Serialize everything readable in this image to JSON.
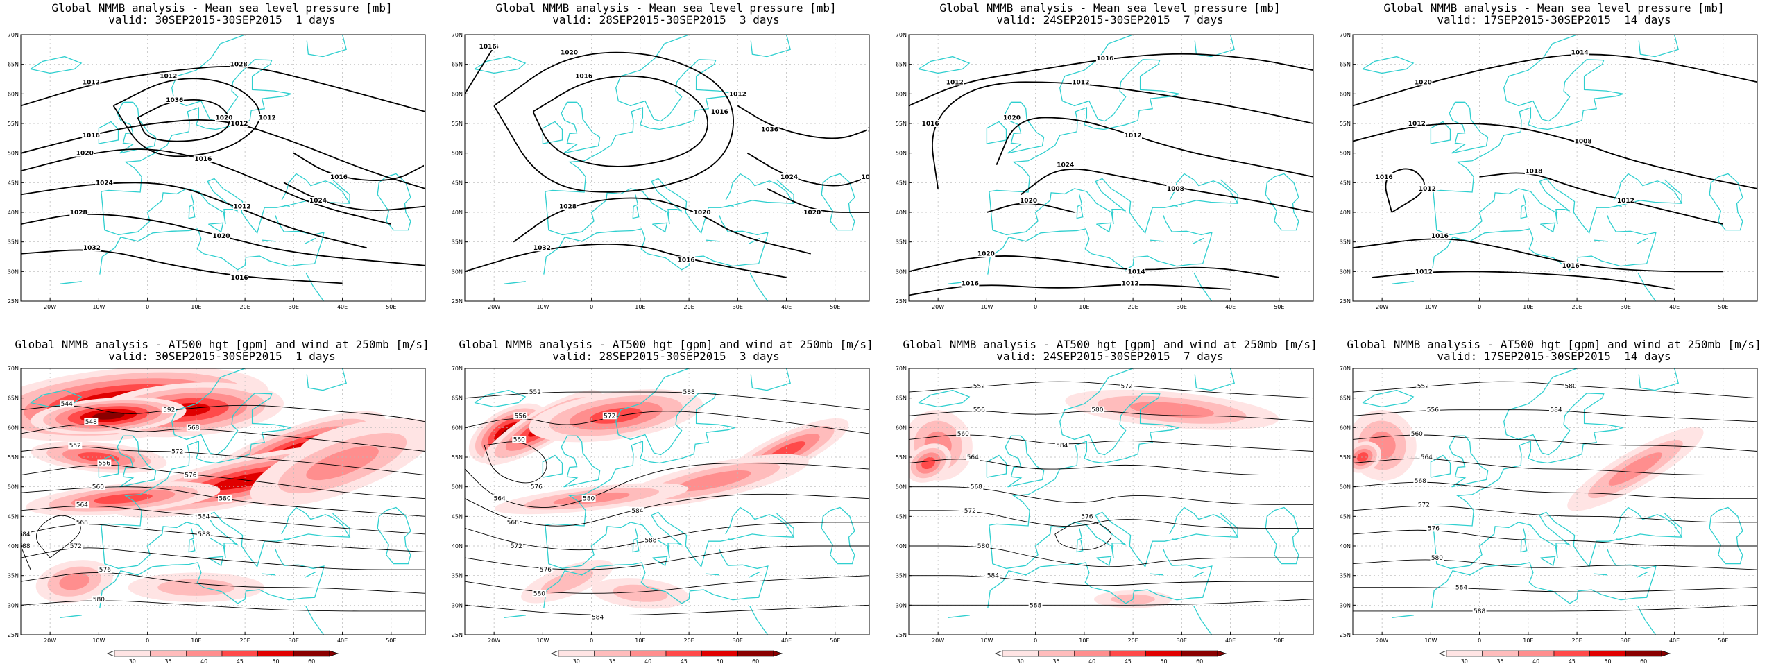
{
  "colors": {
    "coast": "#2fcfcf",
    "contour": "#000000",
    "grid": "#b8b8b8",
    "wind": [
      "#ffe4e4",
      "#ffbcbc",
      "#ff8e8e",
      "#ff4a4a",
      "#e00000",
      "#8a0000"
    ]
  },
  "axes": {
    "lat_ticks": [
      "70N",
      "65N",
      "60N",
      "55N",
      "50N",
      "45N",
      "40N",
      "35N",
      "30N",
      "25N"
    ],
    "lon_ticks": [
      "20W",
      "10W",
      "0",
      "10E",
      "20E",
      "30E",
      "40E",
      "50E"
    ]
  },
  "colorbar": {
    "ticks": [
      "30",
      "35",
      "40",
      "45",
      "50",
      "60"
    ]
  },
  "panels": [
    {
      "line1": "Global NMMB analysis - Mean sea level pressure [mb]",
      "line2": "valid: 30SEP2015-30SEP2015  1 days",
      "labels": [
        "1012",
        "1016",
        "1020",
        "1024",
        "1028",
        "1032",
        "1036",
        "1012",
        "1016",
        "1024",
        "1028",
        "1020",
        "1016",
        "1012",
        "1020",
        "1016",
        "1012",
        "1012",
        "1016"
      ]
    },
    {
      "line1": "Global NMMB analysis - Mean sea level pressure [mb]",
      "line2": "valid: 28SEP2015-30SEP2015  3 days",
      "labels": [
        "1016",
        "1020",
        "1024",
        "1028",
        "1032",
        "1036",
        "1024",
        "1020",
        "1016",
        "1012",
        "1016",
        "1020",
        "1016",
        "1012",
        "1016"
      ]
    },
    {
      "line1": "Global NMMB analysis - Mean sea level pressure [mb]",
      "line2": "valid: 24SEP2015-30SEP2015  7 days",
      "labels": [
        "1012",
        "1016",
        "1020",
        "1024",
        "1020",
        "1016",
        "1020",
        "1016",
        "1012",
        "1012",
        "1008",
        "1014",
        "1012"
      ]
    },
    {
      "line1": "Global NMMB analysis - Mean sea level pressure [mb]",
      "line2": "valid: 17SEP2015-30SEP2015  14 days",
      "labels": [
        "1020",
        "1016",
        "1012",
        "1018",
        "1016",
        "1012",
        "1014",
        "1012",
        "1008",
        "1012",
        "1016"
      ]
    },
    {
      "line1": "Global NMMB analysis - AT500 hgt [gpm] and wind at 250mb [m/s]",
      "line2": "valid: 30SEP2015-30SEP2015  1 days",
      "labels": [
        "544",
        "548",
        "552",
        "556",
        "560",
        "564",
        "568",
        "572",
        "576",
        "580",
        "584",
        "588",
        "592",
        "568",
        "572",
        "576",
        "580",
        "584",
        "588"
      ]
    },
    {
      "line1": "Global NMMB analysis - AT500 hgt [gpm] and wind at 250mb [m/s]",
      "line2": "valid: 28SEP2015-30SEP2015  3 days",
      "labels": [
        "552",
        "556",
        "560",
        "564",
        "568",
        "572",
        "576",
        "580",
        "584",
        "588",
        "572",
        "576",
        "580",
        "584",
        "588"
      ]
    },
    {
      "line1": "Global NMMB analysis - AT500 hgt [gpm] and wind at 250mb [m/s]",
      "line2": "valid: 24SEP2015-30SEP2015  7 days",
      "labels": [
        "552",
        "556",
        "560",
        "564",
        "568",
        "572",
        "576",
        "580",
        "584",
        "588",
        "572",
        "580",
        "584"
      ]
    },
    {
      "line1": "Global NMMB analysis - AT500 hgt [gpm] and wind at 250mb [m/s]",
      "line2": "valid: 17SEP2015-30SEP2015  14 days",
      "labels": [
        "552",
        "556",
        "560",
        "564",
        "568",
        "572",
        "576",
        "580",
        "584",
        "588",
        "580",
        "584"
      ]
    }
  ]
}
